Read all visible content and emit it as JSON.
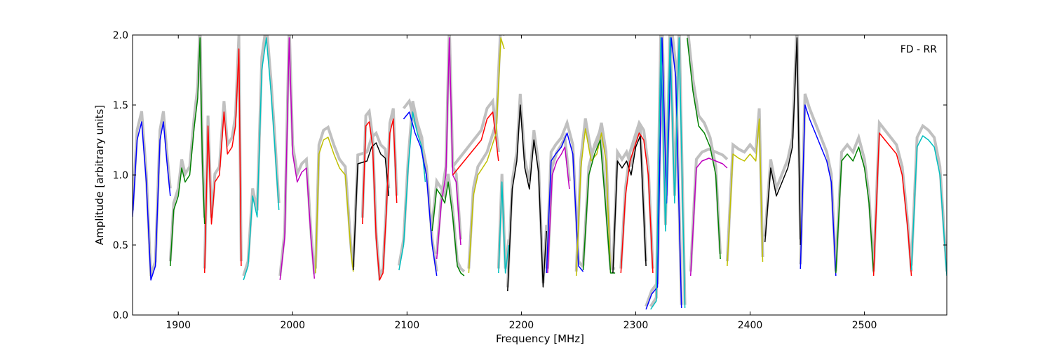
{
  "chart_data": {
    "type": "line",
    "annotation": "FD - RR",
    "xlabel": "Frequency [MHz]",
    "ylabel": "Amplitude [arbitrary units]",
    "xlim": [
      1860,
      2572
    ],
    "ylim": [
      0,
      2.0
    ],
    "x_ticks": [
      1900,
      2000,
      2100,
      2200,
      2300,
      2400,
      2500
    ],
    "y_ticks": [
      0.0,
      0.5,
      1.0,
      1.5,
      2.0
    ],
    "x_tick_labels": [
      "1900",
      "2000",
      "2100",
      "2200",
      "2300",
      "2400",
      "2500"
    ],
    "y_tick_labels": [
      "0.0",
      "0.5",
      "1.0",
      "1.5",
      "2.0"
    ],
    "grid": false,
    "background_color": "#c0c0c0",
    "series": [
      {
        "color": "#0000ff",
        "x": [
          1860,
          1864,
          1868,
          1872,
          1876,
          1880,
          1884,
          1887,
          1890,
          1893
        ],
        "y": [
          0.7,
          1.25,
          1.38,
          0.95,
          0.25,
          0.35,
          1.25,
          1.38,
          1.1,
          0.85
        ]
      },
      {
        "color": "#008000",
        "x": [
          1893,
          1896,
          1900,
          1903,
          1906,
          1910,
          1914,
          1917,
          1919,
          1921,
          1923
        ],
        "y": [
          0.35,
          0.75,
          0.85,
          1.05,
          0.95,
          1.0,
          1.35,
          1.55,
          1.98,
          1.1,
          0.65
        ]
      },
      {
        "color": "#ff0000",
        "x": [
          1923,
          1926,
          1929,
          1932,
          1936,
          1940,
          1943,
          1947,
          1950,
          1953,
          1955
        ],
        "y": [
          0.3,
          1.35,
          0.65,
          0.95,
          1.0,
          1.45,
          1.15,
          1.2,
          1.35,
          1.9,
          0.35
        ]
      },
      {
        "color": "#00bfbf",
        "x": [
          1957,
          1961,
          1965,
          1969,
          1973,
          1977,
          1981,
          1984,
          1988
        ],
        "y": [
          0.25,
          0.35,
          0.85,
          0.7,
          1.75,
          1.98,
          1.6,
          1.25,
          0.75
        ]
      },
      {
        "color": "#bf00bf",
        "x": [
          1989,
          1993,
          1997,
          2000,
          2004,
          2008,
          2012,
          2016,
          2019
        ],
        "y": [
          0.25,
          0.55,
          1.98,
          1.15,
          0.95,
          1.02,
          1.05,
          0.55,
          0.26
        ]
      },
      {
        "color": "#bfbf00",
        "x": [
          2020,
          2023,
          2027,
          2031,
          2036,
          2041,
          2046,
          2051,
          2053
        ],
        "y": [
          0.3,
          1.15,
          1.25,
          1.27,
          1.15,
          1.05,
          1.0,
          0.45,
          0.31
        ]
      },
      {
        "color": "#000000",
        "x": [
          2053,
          2057,
          2061,
          2065,
          2069,
          2073,
          2077,
          2081,
          2084
        ],
        "y": [
          0.32,
          1.08,
          1.09,
          1.1,
          1.2,
          1.23,
          1.15,
          1.12,
          0.85
        ]
      },
      {
        "color": "#ff0000",
        "x": [
          2061,
          2064,
          2067,
          2070,
          2073,
          2076,
          2079,
          2082,
          2085,
          2088,
          2091
        ],
        "y": [
          0.65,
          1.35,
          1.38,
          1.2,
          0.55,
          0.25,
          0.3,
          0.75,
          1.3,
          1.4,
          0.8
        ]
      },
      {
        "color": "#00bfbf",
        "x": [
          2093,
          2097,
          2101,
          2105,
          2109,
          2113,
          2116
        ],
        "y": [
          0.32,
          0.5,
          1.05,
          1.45,
          1.3,
          1.2,
          0.95
        ]
      },
      {
        "color": "#0000ff",
        "x": [
          2097,
          2102,
          2107,
          2112,
          2117,
          2122,
          2126
        ],
        "y": [
          1.4,
          1.45,
          1.3,
          1.2,
          1.0,
          0.5,
          0.28
        ]
      },
      {
        "color": "#bf00bf",
        "x": [
          2126,
          2130,
          2134,
          2137,
          2140,
          2143,
          2147
        ],
        "y": [
          0.4,
          0.8,
          1.0,
          1.98,
          1.0,
          0.95,
          0.5
        ]
      },
      {
        "color": "#008000",
        "x": [
          2122,
          2126,
          2130,
          2133,
          2136,
          2140,
          2144,
          2147,
          2150
        ],
        "y": [
          0.6,
          0.9,
          0.85,
          0.8,
          0.95,
          0.7,
          0.35,
          0.3,
          0.28
        ]
      },
      {
        "color": "#ff0000",
        "x": [
          2140,
          2145,
          2150,
          2155,
          2160,
          2165,
          2170,
          2175,
          2180
        ],
        "y": [
          1.0,
          1.05,
          1.1,
          1.15,
          1.2,
          1.25,
          1.4,
          1.45,
          1.1
        ]
      },
      {
        "color": "#bfbf00",
        "x": [
          2154,
          2158,
          2162,
          2166,
          2170,
          2174,
          2178,
          2182,
          2185
        ],
        "y": [
          0.3,
          0.85,
          1.0,
          1.05,
          1.1,
          1.2,
          1.3,
          1.98,
          1.9
        ]
      },
      {
        "color": "#00bfbf",
        "x": [
          2180,
          2183,
          2186,
          2189
        ],
        "y": [
          0.3,
          0.95,
          0.3,
          0.5
        ]
      },
      {
        "color": "#000000",
        "x": [
          2188,
          2192,
          2196,
          2199,
          2203,
          2207,
          2211,
          2215,
          2219,
          2222
        ],
        "y": [
          0.17,
          0.9,
          1.1,
          1.5,
          1.05,
          0.9,
          1.25,
          1.02,
          0.2,
          0.6
        ]
      },
      {
        "color": "#bf00bf",
        "x": [
          2223,
          2227,
          2231,
          2235,
          2238,
          2242
        ],
        "y": [
          0.3,
          1.0,
          1.1,
          1.15,
          1.2,
          0.9
        ]
      },
      {
        "color": "#0000ff",
        "x": [
          2222,
          2226,
          2230,
          2235,
          2240,
          2245,
          2250,
          2254
        ],
        "y": [
          0.3,
          1.1,
          1.15,
          1.2,
          1.3,
          1.15,
          0.35,
          0.31
        ]
      },
      {
        "color": "#bfbf00",
        "x": [
          2248,
          2252,
          2256,
          2261,
          2266,
          2270,
          2274,
          2278
        ],
        "y": [
          0.28,
          1.05,
          1.33,
          1.1,
          1.15,
          1.3,
          1.1,
          0.3
        ]
      },
      {
        "color": "#008000",
        "x": [
          2254,
          2259,
          2264,
          2269,
          2273,
          2278,
          2282
        ],
        "y": [
          0.32,
          1.0,
          1.15,
          1.25,
          0.85,
          0.3,
          0.3
        ]
      },
      {
        "color": "#000000",
        "x": [
          2280,
          2284,
          2288,
          2292,
          2296,
          2300,
          2304,
          2309
        ],
        "y": [
          0.3,
          1.1,
          1.05,
          1.1,
          1.0,
          1.2,
          1.28,
          0.35
        ]
      },
      {
        "color": "#ff0000",
        "x": [
          2287,
          2291,
          2295,
          2299,
          2303,
          2307,
          2311,
          2315
        ],
        "y": [
          0.3,
          0.85,
          1.1,
          1.2,
          1.3,
          1.25,
          1.0,
          0.3
        ]
      },
      {
        "color": "#0000ff",
        "x": [
          2309,
          2314,
          2319,
          2323,
          2327,
          2331,
          2335,
          2340
        ],
        "y": [
          0.04,
          0.15,
          0.2,
          1.98,
          0.8,
          1.98,
          1.7,
          0.05
        ]
      },
      {
        "color": "#00bfbf",
        "x": [
          2313,
          2318,
          2322,
          2326,
          2330,
          2334,
          2338,
          2343
        ],
        "y": [
          0.04,
          0.1,
          1.98,
          0.6,
          1.98,
          0.8,
          1.98,
          0.05
        ]
      },
      {
        "color": "#008000",
        "x": [
          2345,
          2350,
          2355,
          2360,
          2365,
          2370,
          2374
        ],
        "y": [
          1.98,
          1.6,
          1.35,
          1.3,
          1.2,
          1.0,
          0.4
        ]
      },
      {
        "color": "#bf00bf",
        "x": [
          2348,
          2353,
          2358,
          2364,
          2370,
          2376,
          2380
        ],
        "y": [
          0.28,
          1.05,
          1.1,
          1.12,
          1.1,
          1.08,
          1.05
        ]
      },
      {
        "color": "#bfbf00",
        "x": [
          2380,
          2385,
          2390,
          2395,
          2400,
          2405,
          2408,
          2411
        ],
        "y": [
          0.35,
          1.15,
          1.12,
          1.1,
          1.15,
          1.1,
          1.4,
          0.38
        ]
      },
      {
        "color": "#000000",
        "x": [
          2413,
          2418,
          2423,
          2428,
          2433,
          2437,
          2441,
          2444
        ],
        "y": [
          0.52,
          1.05,
          0.85,
          0.95,
          1.05,
          1.2,
          1.98,
          0.5
        ]
      },
      {
        "color": "#0000ff",
        "x": [
          2444,
          2448,
          2452,
          2457,
          2462,
          2467,
          2471,
          2475
        ],
        "y": [
          0.33,
          1.5,
          1.4,
          1.3,
          1.2,
          1.1,
          0.95,
          0.28
        ]
      },
      {
        "color": "#008000",
        "x": [
          2475,
          2480,
          2485,
          2490,
          2495,
          2500,
          2504,
          2508
        ],
        "y": [
          0.3,
          1.1,
          1.15,
          1.1,
          1.2,
          1.05,
          0.8,
          0.3
        ]
      },
      {
        "color": "#ff0000",
        "x": [
          2508,
          2513,
          2518,
          2523,
          2528,
          2533,
          2538,
          2541
        ],
        "y": [
          0.28,
          1.3,
          1.25,
          1.2,
          1.15,
          1.0,
          0.6,
          0.28
        ]
      },
      {
        "color": "#00bfbf",
        "x": [
          2541,
          2546,
          2551,
          2556,
          2561,
          2566,
          2572
        ],
        "y": [
          0.32,
          1.2,
          1.28,
          1.25,
          1.2,
          1.0,
          0.28
        ]
      }
    ]
  }
}
